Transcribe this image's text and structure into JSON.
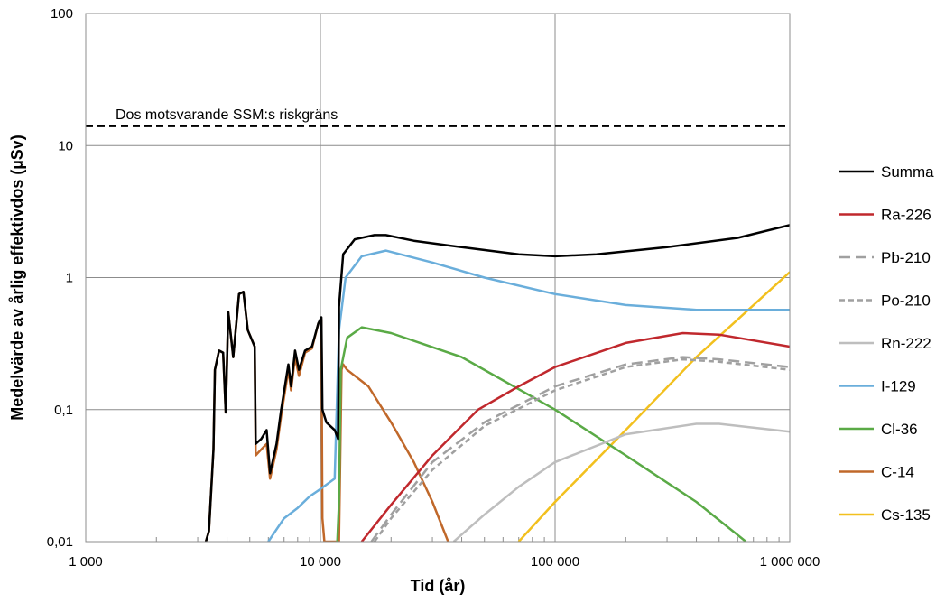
{
  "chart_data": {
    "type": "line",
    "xlabel": "Tid (år)",
    "ylabel": "Medelvärde av årlig effektivdos (µSv)",
    "x_scale": "log",
    "y_scale": "log",
    "xlim": [
      1000,
      1000000
    ],
    "ylim": [
      0.01,
      100
    ],
    "x_ticks": [
      {
        "value": 1000,
        "label": "1 000"
      },
      {
        "value": 10000,
        "label": "10 000"
      },
      {
        "value": 100000,
        "label": "100 000"
      },
      {
        "value": 1000000,
        "label": "1 000 000"
      }
    ],
    "y_ticks": [
      {
        "value": 100,
        "label": "100"
      },
      {
        "value": 10,
        "label": "10"
      },
      {
        "value": 1,
        "label": "1"
      },
      {
        "value": 0.1,
        "label": "0,1"
      },
      {
        "value": 0.01,
        "label": "0,01"
      }
    ],
    "grid": true,
    "legend_position": "right",
    "reference_line": {
      "label": "Dos motsvarande SSM:s riskgräns",
      "y": 14,
      "style": "dashed",
      "color": "#000000"
    },
    "series": [
      {
        "name": "Summa",
        "color": "#000000",
        "dash": "solid",
        "points": [
          [
            3250,
            0.01
          ],
          [
            3350,
            0.012
          ],
          [
            3500,
            0.05
          ],
          [
            3550,
            0.2
          ],
          [
            3700,
            0.28
          ],
          [
            3850,
            0.27
          ],
          [
            3950,
            0.095
          ],
          [
            4050,
            0.55
          ],
          [
            4250,
            0.25
          ],
          [
            4500,
            0.75
          ],
          [
            4700,
            0.78
          ],
          [
            4900,
            0.4
          ],
          [
            5250,
            0.3
          ],
          [
            5300,
            0.055
          ],
          [
            5600,
            0.06
          ],
          [
            5900,
            0.07
          ],
          [
            6100,
            0.033
          ],
          [
            6500,
            0.055
          ],
          [
            6800,
            0.1
          ],
          [
            7300,
            0.22
          ],
          [
            7500,
            0.15
          ],
          [
            7800,
            0.28
          ],
          [
            8100,
            0.2
          ],
          [
            8600,
            0.28
          ],
          [
            9200,
            0.3
          ],
          [
            9800,
            0.45
          ],
          [
            10100,
            0.5
          ],
          [
            10200,
            0.1
          ],
          [
            10600,
            0.08
          ],
          [
            11500,
            0.07
          ],
          [
            11900,
            0.06
          ],
          [
            12000,
            0.6
          ],
          [
            12500,
            1.5
          ],
          [
            14000,
            1.95
          ],
          [
            17000,
            2.1
          ],
          [
            19000,
            2.1
          ],
          [
            25000,
            1.9
          ],
          [
            40000,
            1.7
          ],
          [
            70000,
            1.5
          ],
          [
            100000,
            1.45
          ],
          [
            150000,
            1.5
          ],
          [
            300000,
            1.7
          ],
          [
            600000,
            2.0
          ],
          [
            1000000,
            2.5
          ]
        ]
      },
      {
        "name": "Ra-226",
        "color": "#c0282d",
        "dash": "solid",
        "points": [
          [
            15000,
            0.01
          ],
          [
            20000,
            0.019
          ],
          [
            30000,
            0.045
          ],
          [
            47000,
            0.1
          ],
          [
            70000,
            0.15
          ],
          [
            100000,
            0.21
          ],
          [
            200000,
            0.32
          ],
          [
            350000,
            0.38
          ],
          [
            500000,
            0.37
          ],
          [
            1000000,
            0.3
          ]
        ]
      },
      {
        "name": "Pb-210",
        "color": "#a0a0a0",
        "dash": "long",
        "points": [
          [
            16500,
            0.01
          ],
          [
            20000,
            0.016
          ],
          [
            30000,
            0.04
          ],
          [
            50000,
            0.08
          ],
          [
            100000,
            0.15
          ],
          [
            200000,
            0.22
          ],
          [
            350000,
            0.25
          ],
          [
            500000,
            0.24
          ],
          [
            1000000,
            0.21
          ]
        ]
      },
      {
        "name": "Po-210",
        "color": "#a0a0a0",
        "dash": "short",
        "points": [
          [
            17000,
            0.01
          ],
          [
            20000,
            0.015
          ],
          [
            30000,
            0.035
          ],
          [
            50000,
            0.075
          ],
          [
            100000,
            0.14
          ],
          [
            200000,
            0.21
          ],
          [
            350000,
            0.24
          ],
          [
            500000,
            0.23
          ],
          [
            1000000,
            0.2
          ]
        ]
      },
      {
        "name": "Rn-222",
        "color": "#bebebe",
        "dash": "solid",
        "points": [
          [
            37000,
            0.01
          ],
          [
            50000,
            0.016
          ],
          [
            70000,
            0.026
          ],
          [
            100000,
            0.04
          ],
          [
            200000,
            0.065
          ],
          [
            400000,
            0.078
          ],
          [
            500000,
            0.078
          ],
          [
            1000000,
            0.068
          ]
        ]
      },
      {
        "name": "I-129",
        "color": "#6aaedb",
        "dash": "solid",
        "points": [
          [
            6000,
            0.01
          ],
          [
            7000,
            0.015
          ],
          [
            8000,
            0.018
          ],
          [
            9000,
            0.022
          ],
          [
            10000,
            0.025
          ],
          [
            11500,
            0.03
          ],
          [
            12000,
            0.4
          ],
          [
            12800,
            1.0
          ],
          [
            15000,
            1.45
          ],
          [
            19000,
            1.6
          ],
          [
            30000,
            1.3
          ],
          [
            50000,
            1.0
          ],
          [
            100000,
            0.75
          ],
          [
            200000,
            0.62
          ],
          [
            400000,
            0.57
          ],
          [
            1000000,
            0.57
          ]
        ]
      },
      {
        "name": "Cl-36",
        "color": "#5aaa46",
        "dash": "solid",
        "points": [
          [
            11800,
            0.01
          ],
          [
            12000,
            0.02
          ],
          [
            12200,
            0.2
          ],
          [
            13000,
            0.35
          ],
          [
            15000,
            0.42
          ],
          [
            20000,
            0.38
          ],
          [
            40000,
            0.25
          ],
          [
            100000,
            0.1
          ],
          [
            200000,
            0.045
          ],
          [
            400000,
            0.02
          ],
          [
            650000,
            0.01
          ]
        ]
      },
      {
        "name": "C-14",
        "color": "#c0682a",
        "dash": "solid",
        "points": [
          [
            3250,
            0.01
          ],
          [
            3350,
            0.012
          ],
          [
            3500,
            0.05
          ],
          [
            3550,
            0.2
          ],
          [
            3700,
            0.28
          ],
          [
            3850,
            0.27
          ],
          [
            3950,
            0.095
          ],
          [
            4050,
            0.55
          ],
          [
            4250,
            0.25
          ],
          [
            4500,
            0.75
          ],
          [
            4700,
            0.78
          ],
          [
            4900,
            0.4
          ],
          [
            5250,
            0.3
          ],
          [
            5300,
            0.045
          ],
          [
            5600,
            0.05
          ],
          [
            5900,
            0.055
          ],
          [
            6100,
            0.03
          ],
          [
            6500,
            0.05
          ],
          [
            6800,
            0.09
          ],
          [
            7300,
            0.2
          ],
          [
            7500,
            0.14
          ],
          [
            7800,
            0.25
          ],
          [
            8100,
            0.18
          ],
          [
            8600,
            0.27
          ],
          [
            9200,
            0.29
          ],
          [
            9800,
            0.45
          ],
          [
            10100,
            0.48
          ],
          [
            10200,
            0.015
          ],
          [
            10400,
            0.01
          ],
          [
            12000,
            0.01
          ],
          [
            12300,
            0.2
          ],
          [
            12500,
            0.22
          ],
          [
            13000,
            0.2
          ],
          [
            16000,
            0.15
          ],
          [
            20000,
            0.08
          ],
          [
            25000,
            0.04
          ],
          [
            30000,
            0.02
          ],
          [
            35000,
            0.01
          ]
        ]
      },
      {
        "name": "Cs-135",
        "color": "#f2c01e",
        "dash": "solid",
        "points": [
          [
            70000,
            0.01
          ],
          [
            100000,
            0.02
          ],
          [
            200000,
            0.07
          ],
          [
            400000,
            0.25
          ],
          [
            1000000,
            1.1
          ]
        ]
      }
    ]
  }
}
